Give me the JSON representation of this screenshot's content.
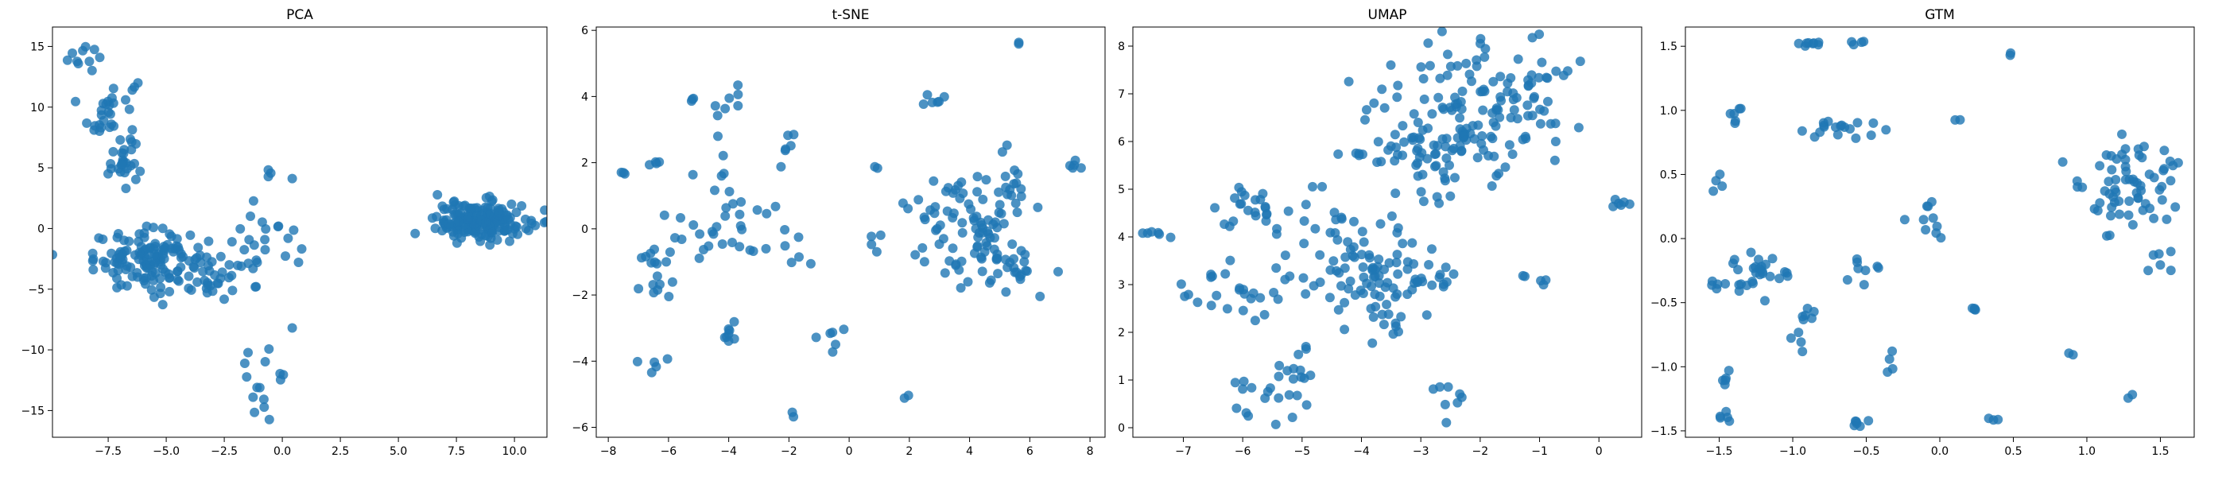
{
  "chart_data": [
    {
      "type": "scatter",
      "title": "PCA",
      "xlabel": "",
      "ylabel": "",
      "xlim": [
        -9.9,
        11.4
      ],
      "ylim": [
        -17.2,
        16.6
      ],
      "xticks": [
        -7.5,
        -5.0,
        -2.5,
        0.0,
        2.5,
        5.0,
        7.5,
        10.0
      ],
      "xtick_labels": [
        "−7.5",
        "−5.0",
        "−2.5",
        "0.0",
        "2.5",
        "5.0",
        "7.5",
        "10.0"
      ],
      "yticks": [
        -15,
        -10,
        -5,
        0,
        5,
        10,
        15
      ],
      "ytick_labels": [
        "−15",
        "−10",
        "−5",
        "0",
        "5",
        "10",
        "15"
      ],
      "color": "#1f77b4",
      "clusters": [
        {
          "cx": -8.4,
          "cy": 14.2,
          "sx": 0.4,
          "sy": 1.0,
          "n": 10
        },
        {
          "cx": -7.4,
          "cy": 9.5,
          "sx": 0.6,
          "sy": 1.6,
          "n": 35
        },
        {
          "cx": -6.8,
          "cy": 5.2,
          "sx": 0.4,
          "sy": 0.9,
          "n": 20
        },
        {
          "cx": -5.7,
          "cy": -2.6,
          "sx": 1.2,
          "sy": 1.2,
          "n": 140
        },
        {
          "cx": -2.6,
          "cy": -4.0,
          "sx": 1.2,
          "sy": 0.8,
          "n": 30
        },
        {
          "cx": -0.8,
          "cy": -1.0,
          "sx": 0.8,
          "sy": 1.1,
          "n": 18
        },
        {
          "cx": -0.3,
          "cy": 4.3,
          "sx": 0.5,
          "sy": 0.4,
          "n": 4
        },
        {
          "cx": -0.6,
          "cy": -12.5,
          "sx": 0.6,
          "sy": 2.0,
          "n": 16
        },
        {
          "cx": 8.6,
          "cy": 0.6,
          "sx": 1.0,
          "sy": 0.8,
          "n": 180
        }
      ]
    },
    {
      "type": "scatter",
      "title": "t-SNE",
      "xlabel": "",
      "ylabel": "",
      "xlim": [
        -8.4,
        8.5
      ],
      "ylim": [
        -6.3,
        6.1
      ],
      "xticks": [
        -8,
        -6,
        -4,
        -2,
        0,
        2,
        4,
        6,
        8
      ],
      "xtick_labels": [
        "−8",
        "−6",
        "−4",
        "−2",
        "0",
        "2",
        "4",
        "6",
        "8"
      ],
      "yticks": [
        -6,
        -4,
        -2,
        0,
        2,
        4,
        6
      ],
      "ytick_labels": [
        "−6",
        "−4",
        "−2",
        "0",
        "2",
        "4",
        "6"
      ],
      "color": "#1f77b4",
      "clusters": [
        {
          "cx": -7.5,
          "cy": 1.7,
          "sx": 0.05,
          "sy": 0.05,
          "n": 3
        },
        {
          "cx": -6.8,
          "cy": -4.1,
          "sx": 0.3,
          "sy": 0.15,
          "n": 5
        },
        {
          "cx": -6.5,
          "cy": 2.0,
          "sx": 0.15,
          "sy": 0.05,
          "n": 4
        },
        {
          "cx": -6.2,
          "cy": -1.5,
          "sx": 0.4,
          "sy": 0.5,
          "n": 12
        },
        {
          "cx": -6.6,
          "cy": -0.9,
          "sx": 0.2,
          "sy": 0.1,
          "n": 4
        },
        {
          "cx": -5.2,
          "cy": 3.9,
          "sx": 0.1,
          "sy": 0.05,
          "n": 3
        },
        {
          "cx": -4.0,
          "cy": 3.7,
          "sx": 0.2,
          "sy": 0.3,
          "n": 8
        },
        {
          "cx": -4.2,
          "cy": 0.3,
          "sx": 0.9,
          "sy": 0.9,
          "n": 35
        },
        {
          "cx": -4.0,
          "cy": -3.1,
          "sx": 0.2,
          "sy": 0.2,
          "n": 8
        },
        {
          "cx": -2.1,
          "cy": 2.4,
          "sx": 0.2,
          "sy": 0.3,
          "n": 6
        },
        {
          "cx": -1.8,
          "cy": -0.8,
          "sx": 0.3,
          "sy": 0.8,
          "n": 6
        },
        {
          "cx": -0.6,
          "cy": -3.2,
          "sx": 0.15,
          "sy": 0.2,
          "n": 6
        },
        {
          "cx": -1.9,
          "cy": -5.6,
          "sx": 0.05,
          "sy": 0.05,
          "n": 2
        },
        {
          "cx": 2.0,
          "cy": -5.0,
          "sx": 0.05,
          "sy": 0.05,
          "n": 2
        },
        {
          "cx": 2.8,
          "cy": 3.9,
          "sx": 0.3,
          "sy": 0.2,
          "n": 6
        },
        {
          "cx": 4.0,
          "cy": 0.1,
          "sx": 1.0,
          "sy": 0.9,
          "n": 90
        },
        {
          "cx": 5.5,
          "cy": -1.1,
          "sx": 0.7,
          "sy": 0.6,
          "n": 20
        },
        {
          "cx": 5.4,
          "cy": 1.2,
          "sx": 0.3,
          "sy": 0.3,
          "n": 10
        },
        {
          "cx": 5.6,
          "cy": 5.6,
          "sx": 0.05,
          "sy": 0.05,
          "n": 2
        },
        {
          "cx": 7.4,
          "cy": 1.9,
          "sx": 0.2,
          "sy": 0.1,
          "n": 5
        },
        {
          "cx": 0.9,
          "cy": 1.8,
          "sx": 0.05,
          "sy": 0.05,
          "n": 2
        },
        {
          "cx": 0.7,
          "cy": -0.6,
          "sx": 0.3,
          "sy": 0.5,
          "n": 4
        }
      ]
    },
    {
      "type": "scatter",
      "title": "UMAP",
      "xlabel": "",
      "ylabel": "",
      "xlim": [
        -7.85,
        0.72
      ],
      "ylim": [
        -0.2,
        8.4
      ],
      "xticks": [
        -7,
        -6,
        -5,
        -4,
        -3,
        -2,
        -1,
        0
      ],
      "xtick_labels": [
        "−7",
        "−6",
        "−5",
        "−4",
        "−3",
        "−2",
        "−1",
        "0"
      ],
      "yticks": [
        0,
        1,
        2,
        3,
        4,
        5,
        6,
        7,
        8
      ],
      "ytick_labels": [
        "0",
        "1",
        "2",
        "3",
        "4",
        "5",
        "6",
        "7",
        "8"
      ],
      "color": "#1f77b4",
      "clusters": [
        {
          "cx": -2.5,
          "cy": 6.2,
          "sx": 0.8,
          "sy": 0.8,
          "n": 150
        },
        {
          "cx": -1.3,
          "cy": 7.2,
          "sx": 0.5,
          "sy": 0.5,
          "n": 40
        },
        {
          "cx": -3.9,
          "cy": 3.2,
          "sx": 0.6,
          "sy": 0.5,
          "n": 80
        },
        {
          "cx": -5.8,
          "cy": 4.5,
          "sx": 0.4,
          "sy": 0.3,
          "n": 25
        },
        {
          "cx": -6.1,
          "cy": 2.9,
          "sx": 0.4,
          "sy": 0.4,
          "n": 25
        },
        {
          "cx": -5.6,
          "cy": 0.7,
          "sx": 0.4,
          "sy": 0.3,
          "n": 20
        },
        {
          "cx": -5.0,
          "cy": 1.2,
          "sx": 0.1,
          "sy": 0.3,
          "n": 8
        },
        {
          "cx": -3.6,
          "cy": 2.2,
          "sx": 0.2,
          "sy": 0.3,
          "n": 10
        },
        {
          "cx": -2.8,
          "cy": 3.1,
          "sx": 0.3,
          "sy": 0.2,
          "n": 12
        },
        {
          "cx": -2.4,
          "cy": 0.6,
          "sx": 0.2,
          "sy": 0.2,
          "n": 8
        },
        {
          "cx": -1.1,
          "cy": 3.1,
          "sx": 0.1,
          "sy": 0.1,
          "n": 5
        },
        {
          "cx": -7.4,
          "cy": 4.1,
          "sx": 0.2,
          "sy": 0.05,
          "n": 6
        },
        {
          "cx": 0.2,
          "cy": 4.7,
          "sx": 0.2,
          "sy": 0.1,
          "n": 6
        },
        {
          "cx": -4.3,
          "cy": 4.5,
          "sx": 0.4,
          "sy": 0.3,
          "n": 12
        }
      ]
    },
    {
      "type": "scatter",
      "title": "GTM",
      "xlabel": "",
      "ylabel": "",
      "xlim": [
        -1.73,
        1.73
      ],
      "ylim": [
        -1.55,
        1.65
      ],
      "xticks": [
        -1.5,
        -1.0,
        -0.5,
        0.0,
        0.5,
        1.0,
        1.5
      ],
      "xtick_labels": [
        "−1.5",
        "−1.0",
        "−0.5",
        "0.0",
        "0.5",
        "1.0",
        "1.5"
      ],
      "yticks": [
        -1.5,
        -1.0,
        -0.5,
        0.0,
        0.5,
        1.0,
        1.5
      ],
      "ytick_labels": [
        "−1.5",
        "−1.0",
        "−0.5",
        "0.0",
        "0.5",
        "1.0",
        "1.5"
      ],
      "color": "#1f77b4",
      "clusters": [
        {
          "cx": -0.9,
          "cy": 1.52,
          "sx": 0.08,
          "sy": 0.01,
          "n": 8
        },
        {
          "cx": -0.55,
          "cy": 1.52,
          "sx": 0.03,
          "sy": 0.01,
          "n": 4
        },
        {
          "cx": 0.48,
          "cy": 1.44,
          "sx": 0.01,
          "sy": 0.01,
          "n": 2
        },
        {
          "cx": -1.4,
          "cy": 1.0,
          "sx": 0.05,
          "sy": 0.07,
          "n": 6
        },
        {
          "cx": -0.75,
          "cy": 0.85,
          "sx": 0.15,
          "sy": 0.04,
          "n": 18
        },
        {
          "cx": 1.3,
          "cy": 0.4,
          "sx": 0.2,
          "sy": 0.2,
          "n": 70
        },
        {
          "cx": -1.5,
          "cy": 0.4,
          "sx": 0.03,
          "sy": 0.06,
          "n": 4
        },
        {
          "cx": -1.2,
          "cy": -0.25,
          "sx": 0.1,
          "sy": 0.07,
          "n": 25
        },
        {
          "cx": -1.45,
          "cy": -0.35,
          "sx": 0.05,
          "sy": 0.07,
          "n": 8
        },
        {
          "cx": -0.9,
          "cy": -0.7,
          "sx": 0.08,
          "sy": 0.15,
          "n": 10
        },
        {
          "cx": -0.55,
          "cy": -0.25,
          "sx": 0.05,
          "sy": 0.05,
          "n": 8
        },
        {
          "cx": -0.1,
          "cy": 0.15,
          "sx": 0.07,
          "sy": 0.08,
          "n": 10
        },
        {
          "cx": -0.3,
          "cy": -1.0,
          "sx": 0.05,
          "sy": 0.05,
          "n": 4
        },
        {
          "cx": -1.45,
          "cy": -1.1,
          "sx": 0.03,
          "sy": 0.03,
          "n": 5
        },
        {
          "cx": -1.45,
          "cy": -1.4,
          "sx": 0.03,
          "sy": 0.02,
          "n": 5
        },
        {
          "cx": -0.55,
          "cy": -1.43,
          "sx": 0.03,
          "sy": 0.02,
          "n": 6
        },
        {
          "cx": 0.25,
          "cy": -0.55,
          "sx": 0.02,
          "sy": 0.01,
          "n": 4
        },
        {
          "cx": 0.35,
          "cy": -1.42,
          "sx": 0.02,
          "sy": 0.01,
          "n": 3
        },
        {
          "cx": 0.9,
          "cy": -0.9,
          "sx": 0.02,
          "sy": 0.02,
          "n": 2
        },
        {
          "cx": 1.3,
          "cy": -1.25,
          "sx": 0.02,
          "sy": 0.02,
          "n": 2
        },
        {
          "cx": 0.12,
          "cy": 0.92,
          "sx": 0.01,
          "sy": 0.01,
          "n": 2
        },
        {
          "cx": 1.45,
          "cy": -0.15,
          "sx": 0.05,
          "sy": 0.08,
          "n": 6
        }
      ]
    }
  ]
}
